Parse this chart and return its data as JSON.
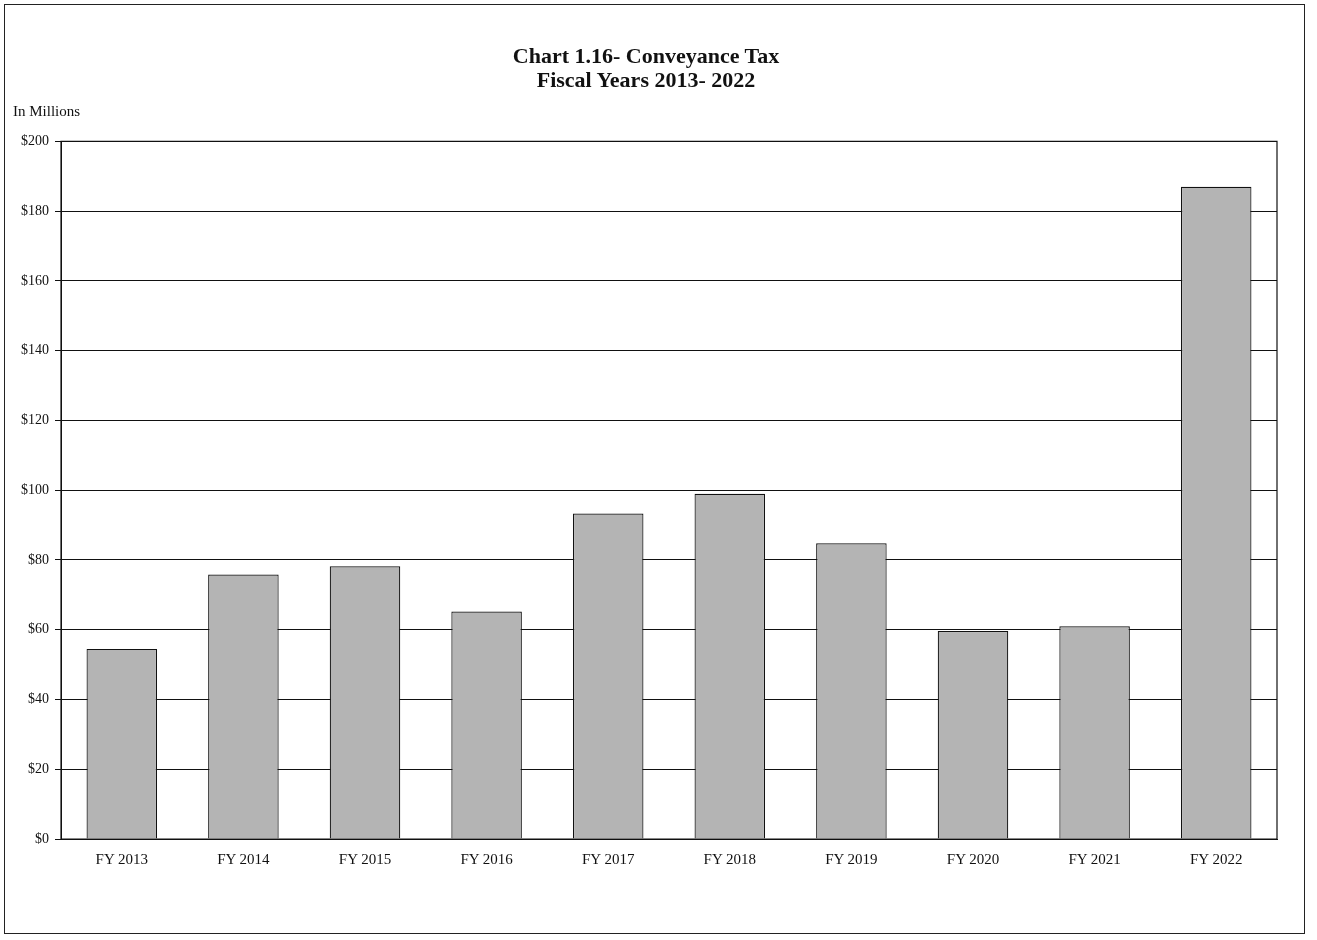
{
  "chart_data": {
    "type": "bar",
    "title": "Chart 1.16- Conveyance Tax\nFiscal Years 2013- 2022",
    "ylabel": "In Millions",
    "categories": [
      "FY 2013",
      "FY 2014",
      "FY 2015",
      "FY 2016",
      "FY 2017",
      "FY 2018",
      "FY 2019",
      "FY 2020",
      "FY 2021",
      "FY 2022"
    ],
    "values": [
      54.5,
      75.8,
      78.2,
      65.2,
      93.3,
      99,
      84.8,
      59.6,
      61,
      187
    ],
    "color": "#b4b4b4",
    "ylim": [
      0,
      200
    ],
    "yticks": [
      {
        "value": 0,
        "label": "$0"
      },
      {
        "value": 20,
        "label": "$20"
      },
      {
        "value": 40,
        "label": "$40"
      },
      {
        "value": 60,
        "label": "$60"
      },
      {
        "value": 80,
        "label": "$80"
      },
      {
        "value": 100,
        "label": "$100"
      },
      {
        "value": 120,
        "label": "$120"
      },
      {
        "value": 140,
        "label": "$140"
      },
      {
        "value": 160,
        "label": "$160"
      },
      {
        "value": 180,
        "label": "$180"
      },
      {
        "value": 200,
        "label": "$200"
      }
    ],
    "grid": "y"
  }
}
